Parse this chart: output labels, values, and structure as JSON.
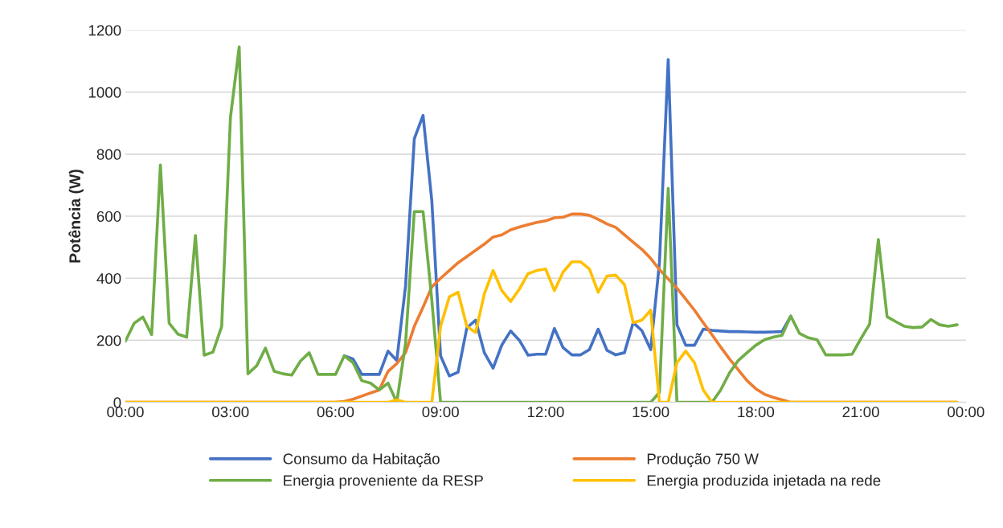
{
  "chart_data": {
    "type": "line",
    "ylabel": "Potência (W)",
    "x": [
      0,
      0.25,
      0.5,
      0.75,
      1,
      1.25,
      1.5,
      1.75,
      2,
      2.25,
      2.5,
      2.75,
      3,
      3.25,
      3.5,
      3.75,
      4,
      4.25,
      4.5,
      4.75,
      5,
      5.25,
      5.5,
      5.75,
      6,
      6.25,
      6.5,
      6.75,
      7,
      7.25,
      7.5,
      7.75,
      8,
      8.25,
      8.5,
      8.75,
      9,
      9.25,
      9.5,
      9.75,
      10,
      10.25,
      10.5,
      10.75,
      11,
      11.25,
      11.5,
      11.75,
      12,
      12.25,
      12.5,
      12.75,
      13,
      13.25,
      13.5,
      13.75,
      14,
      14.25,
      14.5,
      14.75,
      15,
      15.25,
      15.5,
      15.75,
      16,
      16.25,
      16.5,
      16.75,
      17,
      17.25,
      17.5,
      17.75,
      18,
      18.25,
      18.5,
      18.75,
      19,
      19.25,
      19.5,
      19.75,
      20,
      20.25,
      20.5,
      20.75,
      21,
      21.25,
      21.5,
      21.75,
      22,
      22.25,
      22.5,
      22.75,
      23,
      23.25,
      23.5,
      23.75
    ],
    "xlim": [
      0,
      24
    ],
    "xticks": [
      {
        "value": 0,
        "label": "00:00"
      },
      {
        "value": 3,
        "label": "03:00"
      },
      {
        "value": 6,
        "label": "06:00"
      },
      {
        "value": 9,
        "label": "09:00"
      },
      {
        "value": 12,
        "label": "12:00"
      },
      {
        "value": 15,
        "label": "15:00"
      },
      {
        "value": 18,
        "label": "18:00"
      },
      {
        "value": 21,
        "label": "21:00"
      },
      {
        "value": 24,
        "label": "00:00"
      }
    ],
    "ylim": [
      0,
      1200
    ],
    "yticks": [
      0,
      200,
      400,
      600,
      800,
      1000,
      1200
    ],
    "grid": "y",
    "legend": "bottom",
    "marker": "none",
    "line_style": "solid",
    "series": [
      {
        "name": "Consumo da Habitação",
        "color": "#4472c4",
        "values": [
          null,
          null,
          null,
          null,
          null,
          null,
          null,
          null,
          null,
          null,
          null,
          null,
          null,
          null,
          null,
          null,
          null,
          null,
          null,
          null,
          null,
          null,
          null,
          null,
          null,
          150,
          140,
          90,
          90,
          90,
          165,
          135,
          375,
          850,
          925,
          650,
          150,
          85,
          97,
          240,
          265,
          160,
          110,
          185,
          230,
          200,
          152,
          155,
          155,
          238,
          176,
          153,
          153,
          170,
          236,
          168,
          153,
          160,
          257,
          231,
          170,
          450,
          1105,
          250,
          184,
          184,
          236,
          232,
          230,
          228,
          228,
          227,
          226,
          226,
          227,
          228,
          278,
          null,
          null,
          null,
          null,
          null,
          null,
          null,
          null,
          null,
          null,
          null,
          null,
          null,
          null,
          null,
          null,
          null,
          null,
          null
        ]
      },
      {
        "name": "Produção 750 W",
        "color": "#ed7d31",
        "values": [
          0,
          0,
          0,
          0,
          0,
          0,
          0,
          0,
          0,
          0,
          0,
          0,
          0,
          0,
          0,
          0,
          0,
          0,
          0,
          0,
          0,
          0,
          0,
          0,
          0,
          3,
          10,
          20,
          30,
          40,
          100,
          125,
          160,
          245,
          307,
          372,
          400,
          425,
          450,
          470,
          490,
          510,
          533,
          540,
          556,
          565,
          573,
          580,
          585,
          595,
          597,
          607,
          607,
          603,
          590,
          575,
          564,
          540,
          516,
          493,
          464,
          428,
          398,
          368,
          333,
          297,
          257,
          218,
          178,
          140,
          105,
          70,
          44,
          26,
          16,
          8,
          0,
          0,
          0,
          0,
          0,
          0,
          0,
          0,
          0,
          0,
          0,
          0,
          0,
          0,
          0,
          0,
          0,
          0,
          0,
          0
        ]
      },
      {
        "name": "Energia proveniente da RESP",
        "color": "#70ad47",
        "values": [
          197,
          255,
          275,
          218,
          765,
          255,
          220,
          210,
          538,
          152,
          162,
          245,
          918,
          1146,
          92,
          118,
          175,
          100,
          92,
          88,
          133,
          160,
          90,
          90,
          90,
          150,
          128,
          70,
          62,
          40,
          62,
          0,
          190,
          615,
          615,
          330,
          0,
          0,
          0,
          0,
          0,
          0,
          0,
          0,
          0,
          0,
          0,
          0,
          0,
          0,
          0,
          0,
          0,
          0,
          0,
          0,
          0,
          0,
          0,
          0,
          0,
          32,
          690,
          0,
          0,
          0,
          0,
          0,
          40,
          95,
          135,
          160,
          184,
          202,
          210,
          216,
          278,
          222,
          208,
          202,
          153,
          153,
          153,
          155,
          205,
          252,
          525,
          276,
          260,
          245,
          241,
          243,
          267,
          250,
          245,
          250
        ]
      },
      {
        "name": "Energia produzida injetada na rede",
        "color": "#ffc000",
        "values": [
          0,
          0,
          0,
          0,
          0,
          0,
          0,
          0,
          0,
          0,
          0,
          0,
          0,
          0,
          0,
          0,
          0,
          0,
          0,
          0,
          0,
          0,
          0,
          0,
          0,
          0,
          0,
          0,
          0,
          0,
          0,
          8,
          0,
          0,
          0,
          0,
          245,
          340,
          355,
          245,
          225,
          350,
          425,
          360,
          325,
          365,
          415,
          425,
          430,
          360,
          420,
          453,
          453,
          430,
          355,
          407,
          410,
          380,
          257,
          265,
          297,
          0,
          0,
          128,
          165,
          128,
          40,
          0,
          0,
          0,
          0,
          0,
          0,
          0,
          0,
          0,
          0,
          0,
          0,
          0,
          0,
          0,
          0,
          0,
          0,
          0,
          0,
          0,
          0,
          0,
          0,
          0,
          0,
          0,
          0,
          0
        ]
      }
    ]
  }
}
